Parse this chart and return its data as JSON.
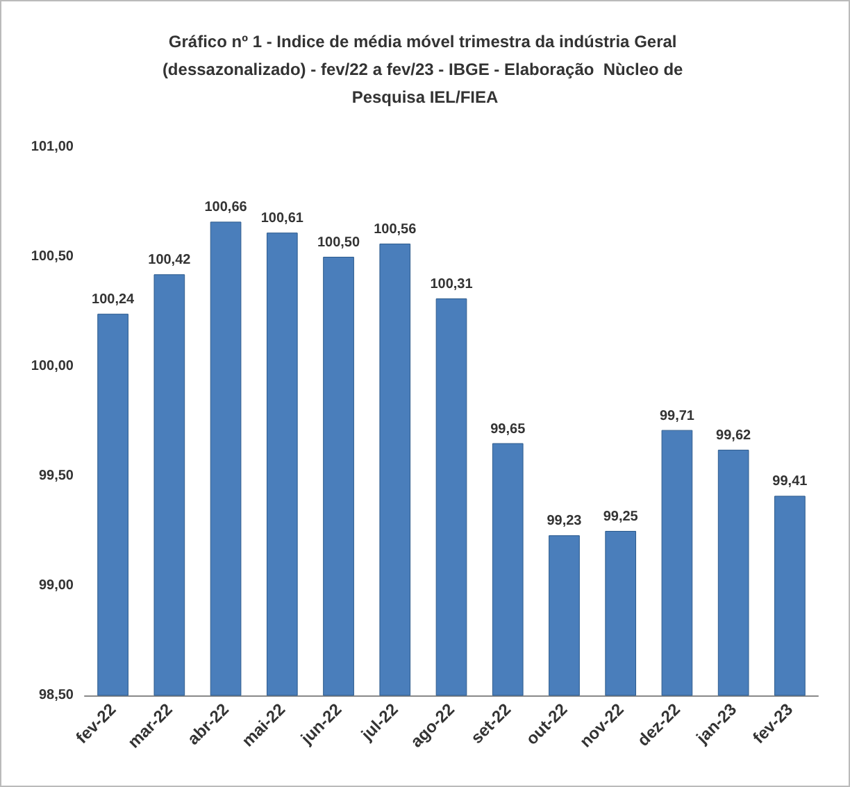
{
  "chart_data": {
    "type": "bar",
    "title": "Gráfico nº 1 - Indice de média móvel trimestra da indústria Geral (dessazonalizado) - fev/22 a fev/23 - IBGE - Elaboração  Nùcleo de Pesquisa IEL/FIEA",
    "categories": [
      "fev-22",
      "mar-22",
      "abr-22",
      "mai-22",
      "jun-22",
      "jul-22",
      "ago-22",
      "set-22",
      "out-22",
      "nov-22",
      "dez-22",
      "jan-23",
      "fev-23"
    ],
    "values": [
      100.24,
      100.42,
      100.66,
      100.61,
      100.5,
      100.56,
      100.31,
      99.65,
      99.23,
      99.25,
      99.71,
      99.62,
      99.41
    ],
    "value_labels": [
      "100,24",
      "100,42",
      "100,66",
      "100,61",
      "100,50",
      "100,56",
      "100,31",
      "99,65",
      "99,23",
      "99,25",
      "99,71",
      "99,62",
      "99,41"
    ],
    "color": "#4a7ebb",
    "ylim": [
      98.5,
      101
    ],
    "yticks": [
      {
        "value": 98.5,
        "label": "98,50"
      },
      {
        "value": 99,
        "label": "99,00"
      },
      {
        "value": 99.5,
        "label": "99,50"
      },
      {
        "value": 100,
        "label": "100,00"
      },
      {
        "value": 100.5,
        "label": "100,50"
      },
      {
        "value": 101,
        "label": "101,00"
      }
    ]
  }
}
